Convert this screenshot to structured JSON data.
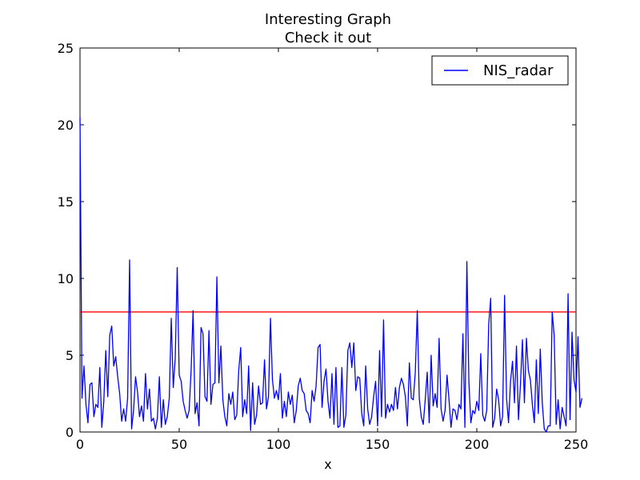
{
  "chart_data": {
    "type": "line",
    "title": "Interesting Graph",
    "subtitle": "Check it out",
    "xlabel": "x",
    "ylabel": "",
    "xlim": [
      0,
      250
    ],
    "ylim": [
      0,
      25
    ],
    "x_ticks": [
      0,
      50,
      100,
      150,
      200,
      250
    ],
    "y_ticks": [
      0,
      5,
      10,
      15,
      20,
      25
    ],
    "grid": false,
    "legend_position": "top-right",
    "series": [
      {
        "name": "NIS_radar",
        "color": "#0000ff",
        "values": [
          20.5,
          2.2,
          4.3,
          1.8,
          0.6,
          3.1,
          3.2,
          1.0,
          1.8,
          1.6,
          4.2,
          0.3,
          2.0,
          5.3,
          2.3,
          6.3,
          6.9,
          4.3,
          4.9,
          3.6,
          2.5,
          0.7,
          1.5,
          0.7,
          2.2,
          11.2,
          0.2,
          1.4,
          3.6,
          2.6,
          1.0,
          1.7,
          0.7,
          3.8,
          1.5,
          2.8,
          0.7,
          0.9,
          0.2,
          0.9,
          3.6,
          0.3,
          2.1,
          0.5,
          1.0,
          2.2,
          7.4,
          2.9,
          4.8,
          10.7,
          3.7,
          3.3,
          2.0,
          1.4,
          0.9,
          1.4,
          4.0,
          7.9,
          1.2,
          1.9,
          0.4,
          6.8,
          6.4,
          2.3,
          2.0,
          6.6,
          1.8,
          3.1,
          3.2,
          10.1,
          3.2,
          5.6,
          2.1,
          1.0,
          0.4,
          2.5,
          1.8,
          2.6,
          0.8,
          1.1,
          4.0,
          5.5,
          1.0,
          2.1,
          1.2,
          4.3,
          0.1,
          3.2,
          0.5,
          1.1,
          3.0,
          1.8,
          1.9,
          4.7,
          1.5,
          2.3,
          7.4,
          3.4,
          2.2,
          2.7,
          2.1,
          3.8,
          0.9,
          2.0,
          1.0,
          2.6,
          1.8,
          2.4,
          0.6,
          1.4,
          3.0,
          3.5,
          2.7,
          2.5,
          1.4,
          1.2,
          0.6,
          2.7,
          2.0,
          3.0,
          5.5,
          5.7,
          1.6,
          3.3,
          4.1,
          2.0,
          0.9,
          3.8,
          0.5,
          4.2,
          0.3,
          0.4,
          4.2,
          0.3,
          1.1,
          5.3,
          5.8,
          4.2,
          5.8,
          2.7,
          3.6,
          3.5,
          1.2,
          0.4,
          4.3,
          1.5,
          0.5,
          1.0,
          2.3,
          3.3,
          0.4,
          5.3,
          1.0,
          7.3,
          0.9,
          1.8,
          1.3,
          1.8,
          1.4,
          2.9,
          1.5,
          2.9,
          3.5,
          3.1,
          2.3,
          0.4,
          4.5,
          2.2,
          2.1,
          3.9,
          7.9,
          2.2,
          1.0,
          0.5,
          2.1,
          3.9,
          0.6,
          5.0,
          1.7,
          2.5,
          1.6,
          6.1,
          1.5,
          0.7,
          1.4,
          3.7,
          2.1,
          0.3,
          1.5,
          1.4,
          0.8,
          1.8,
          1.5,
          6.4,
          0.3,
          11.1,
          3.3,
          0.6,
          1.4,
          1.2,
          2.0,
          1.4,
          5.1,
          1.1,
          0.7,
          1.4,
          7.0,
          8.7,
          0.3,
          0.9,
          2.8,
          2.1,
          0.4,
          1.0,
          8.9,
          2.2,
          0.6,
          3.3,
          4.6,
          1.9,
          5.6,
          0.8,
          3.1,
          6.0,
          1.9,
          6.1,
          4.0,
          3.4,
          1.8,
          0.6,
          4.7,
          1.2,
          5.4,
          1.9,
          0.2,
          0.0,
          0.4,
          0.4,
          7.8,
          6.3,
          0.5,
          2.1,
          0.2,
          1.6,
          1.0,
          0.4,
          9.0,
          0.8,
          6.5,
          3.4,
          2.6,
          6.2,
          1.6,
          2.2
        ]
      },
      {
        "name": "",
        "color": "#ff0000",
        "constant": 7.815
      }
    ]
  }
}
